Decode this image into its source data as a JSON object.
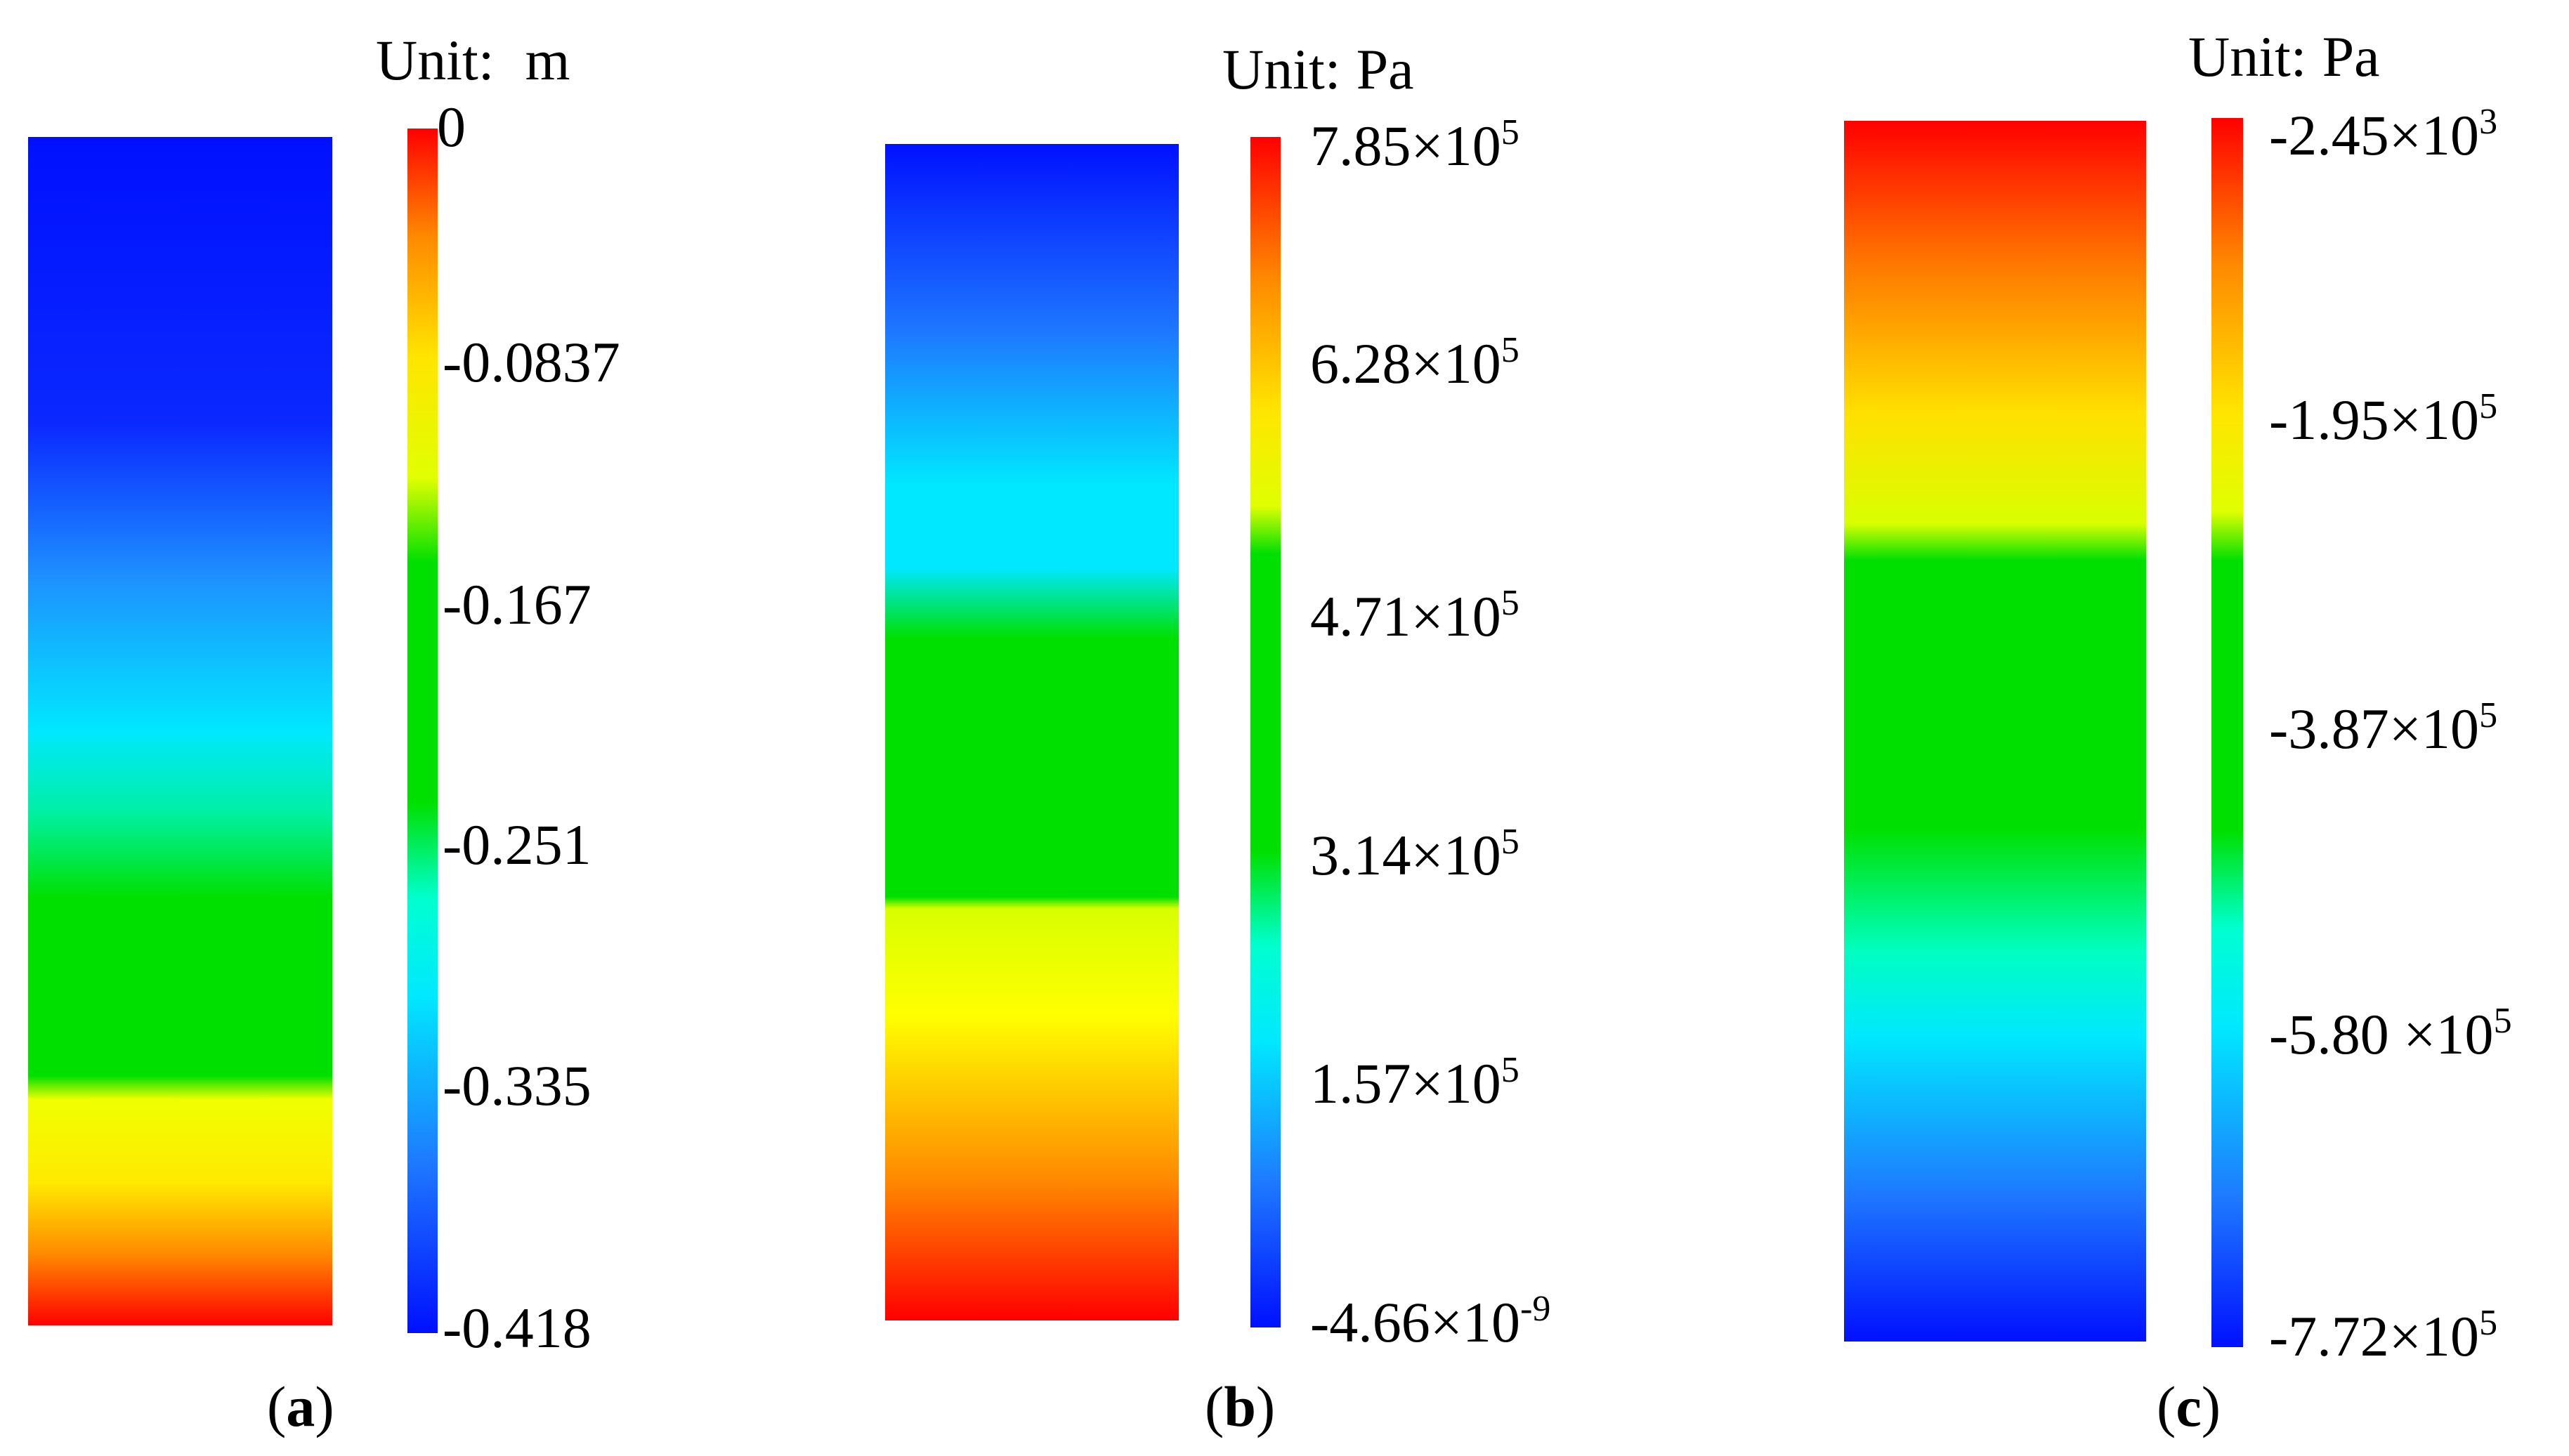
{
  "panels": [
    {
      "id": "a",
      "caption_letter": "a",
      "unit_label": "Unit:",
      "unit": "m",
      "contour_stops": [
        [
          "#0010ff",
          0.0
        ],
        [
          "#0a28ff",
          0.24
        ],
        [
          "#1e90ff",
          0.37
        ],
        [
          "#00e8ff",
          0.5
        ],
        [
          "#00f0a0",
          0.57
        ],
        [
          "#00e000",
          0.64
        ],
        [
          "#00e000",
          0.79
        ],
        [
          "#f0ff00",
          0.81
        ],
        [
          "#ffea00",
          0.88
        ],
        [
          "#ff8a00",
          0.94
        ],
        [
          "#ff0000",
          1.0
        ]
      ],
      "colorbar_stops": [
        [
          "#ff0000",
          0.0
        ],
        [
          "#ff8a00",
          0.09
        ],
        [
          "#ffe500",
          0.19
        ],
        [
          "#e0ff00",
          0.29
        ],
        [
          "#00e000",
          0.36
        ],
        [
          "#00e000",
          0.56
        ],
        [
          "#00ffd0",
          0.64
        ],
        [
          "#00e8ff",
          0.72
        ],
        [
          "#1e78ff",
          0.86
        ],
        [
          "#0010ff",
          1.0
        ]
      ],
      "ticks": [
        {
          "label": "0",
          "exp": ""
        },
        {
          "label": "-0.0837",
          "exp": ""
        },
        {
          "label": "-0.167",
          "exp": ""
        },
        {
          "label": "-0.251",
          "exp": ""
        },
        {
          "label": "-0.335",
          "exp": ""
        },
        {
          "label": "-0.418",
          "exp": ""
        }
      ]
    },
    {
      "id": "b",
      "caption_letter": "b",
      "unit_label": "Unit:",
      "unit": "Pa",
      "contour_stops": [
        [
          "#0010ff",
          0.0
        ],
        [
          "#1e78ff",
          0.16
        ],
        [
          "#00e8ff",
          0.29
        ],
        [
          "#00e8ff",
          0.36
        ],
        [
          "#00e000",
          0.42
        ],
        [
          "#00e000",
          0.64
        ],
        [
          "#d8ff00",
          0.65
        ],
        [
          "#ffff00",
          0.74
        ],
        [
          "#ff8a00",
          0.88
        ],
        [
          "#ff0000",
          1.0
        ]
      ],
      "colorbar_stops": [
        [
          "#ff0000",
          0.0
        ],
        [
          "#ff8a00",
          0.12
        ],
        [
          "#ffe500",
          0.23
        ],
        [
          "#e0ff00",
          0.31
        ],
        [
          "#00e000",
          0.35
        ],
        [
          "#00e000",
          0.6
        ],
        [
          "#00ffd0",
          0.68
        ],
        [
          "#00e8ff",
          0.76
        ],
        [
          "#1e78ff",
          0.88
        ],
        [
          "#0010ff",
          1.0
        ]
      ],
      "ticks": [
        {
          "label": "7.85×10",
          "exp": "5"
        },
        {
          "label": "6.28×10",
          "exp": "5"
        },
        {
          "label": "4.71×10",
          "exp": "5"
        },
        {
          "label": "3.14×10",
          "exp": "5"
        },
        {
          "label": "1.57×10",
          "exp": "5"
        },
        {
          "label": "-4.66×10",
          "exp": "-9"
        }
      ]
    },
    {
      "id": "c",
      "caption_letter": "c",
      "unit_label": "Unit:",
      "unit": "Pa",
      "contour_stops": [
        [
          "#ff0000",
          0.0
        ],
        [
          "#ff7a00",
          0.12
        ],
        [
          "#ffe000",
          0.24
        ],
        [
          "#d8ff00",
          0.33
        ],
        [
          "#00e000",
          0.36
        ],
        [
          "#00e000",
          0.58
        ],
        [
          "#00ffc0",
          0.68
        ],
        [
          "#00e8ff",
          0.75
        ],
        [
          "#1e78ff",
          0.88
        ],
        [
          "#0010ff",
          1.0
        ]
      ],
      "colorbar_stops": [
        [
          "#ff0000",
          0.0
        ],
        [
          "#ff8a00",
          0.12
        ],
        [
          "#ffe500",
          0.24
        ],
        [
          "#e0ff00",
          0.32
        ],
        [
          "#00e000",
          0.36
        ],
        [
          "#00e000",
          0.58
        ],
        [
          "#00ffd0",
          0.66
        ],
        [
          "#00e8ff",
          0.74
        ],
        [
          "#1e78ff",
          0.88
        ],
        [
          "#0010ff",
          1.0
        ]
      ],
      "ticks": [
        {
          "label": "-2.45×10",
          "exp": "3"
        },
        {
          "label": "-1.95×10",
          "exp": "5"
        },
        {
          "label": "-3.87×10",
          "exp": "5"
        },
        {
          "label": "-5.80 ×10",
          "exp": "5"
        },
        {
          "label": "-7.72×10",
          "exp": "5"
        }
      ]
    }
  ]
}
